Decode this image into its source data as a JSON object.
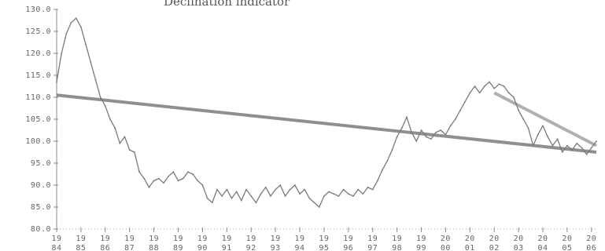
{
  "chart_data": {
    "type": "line",
    "title": "Declination indicator",
    "xlabel": "",
    "ylabel": "",
    "ylim": [
      80,
      130
    ],
    "yticks": [
      80,
      85,
      90,
      95,
      100,
      105,
      110,
      115,
      120,
      125,
      130
    ],
    "ytick_labels": [
      "80.0",
      "85.0",
      "90.0",
      "95.0",
      "100.0",
      "105.0",
      "110.0",
      "115.0",
      "120.0",
      "125.0",
      "130.0"
    ],
    "xlim": [
      1984,
      2006.2
    ],
    "xticks": [
      1984,
      1985,
      1986,
      1987,
      1988,
      1989,
      1990,
      1991,
      1992,
      1993,
      1994,
      1995,
      1996,
      1997,
      1998,
      1999,
      2000,
      2001,
      2002,
      2003,
      2004,
      2005,
      2006
    ],
    "xtick_labels": [
      [
        "19",
        "84"
      ],
      [
        "19",
        "85"
      ],
      [
        "19",
        "86"
      ],
      [
        "19",
        "87"
      ],
      [
        "19",
        "88"
      ],
      [
        "19",
        "89"
      ],
      [
        "19",
        "90"
      ],
      [
        "19",
        "91"
      ],
      [
        "19",
        "92"
      ],
      [
        "19",
        "93"
      ],
      [
        "19",
        "94"
      ],
      [
        "19",
        "95"
      ],
      [
        "19",
        "96"
      ],
      [
        "19",
        "97"
      ],
      [
        "19",
        "98"
      ],
      [
        "19",
        "99"
      ],
      [
        "20",
        "00"
      ],
      [
        "20",
        "01"
      ],
      [
        "20",
        "02"
      ],
      [
        "20",
        "03"
      ],
      [
        "20",
        "04"
      ],
      [
        "20",
        "05"
      ],
      [
        "20",
        "06"
      ]
    ],
    "grid": false,
    "legend": "none",
    "series": [
      {
        "x": [
          1984.0,
          1984.2,
          1984.4,
          1984.6,
          1984.8,
          1985.0,
          1985.2,
          1985.4,
          1985.6,
          1985.8,
          1986.0,
          1986.2,
          1986.4,
          1986.6,
          1986.8,
          1987.0,
          1987.2,
          1987.4,
          1987.6,
          1987.8,
          1988.0,
          1988.2,
          1988.4,
          1988.6,
          1988.8,
          1989.0,
          1989.2,
          1989.4,
          1989.6,
          1989.8,
          1990.0,
          1990.2,
          1990.4,
          1990.6,
          1990.8,
          1991.0,
          1991.2,
          1991.4,
          1991.6,
          1991.8,
          1992.0,
          1992.2,
          1992.4,
          1992.6,
          1992.8,
          1993.0,
          1993.2,
          1993.4,
          1993.6,
          1993.8,
          1994.0,
          1994.2,
          1994.4,
          1994.6,
          1994.8,
          1995.0,
          1995.2,
          1995.4,
          1995.6,
          1995.8,
          1996.0,
          1996.2,
          1996.4,
          1996.6,
          1996.8,
          1997.0,
          1997.2,
          1997.4,
          1997.6,
          1997.8,
          1998.0,
          1998.2,
          1998.4,
          1998.6,
          1998.8,
          1999.0,
          1999.2,
          1999.4,
          1999.6,
          1999.8,
          2000.0,
          2000.2,
          2000.4,
          2000.6,
          2000.8,
          2001.0,
          2001.2,
          2001.4,
          2001.6,
          2001.8,
          2002.0,
          2002.2,
          2002.4,
          2002.6,
          2002.8,
          2003.0,
          2003.2,
          2003.4,
          2003.6,
          2003.8,
          2004.0,
          2004.2,
          2004.4,
          2004.6,
          2004.8,
          2005.0,
          2005.2,
          2005.4,
          2005.6,
          2005.8,
          2006.0,
          2006.2
        ],
        "y": [
          113.5,
          120.0,
          124.5,
          127.0,
          128.0,
          126.0,
          122.0,
          118.0,
          114.0,
          110.0,
          108.0,
          105.0,
          103.0,
          99.5,
          101.0,
          98.0,
          97.5,
          93.0,
          91.5,
          89.5,
          91.0,
          91.5,
          90.5,
          92.0,
          93.0,
          91.0,
          91.5,
          93.0,
          92.5,
          91.0,
          90.0,
          87.0,
          86.0,
          89.0,
          87.5,
          89.0,
          87.0,
          88.5,
          86.5,
          89.0,
          87.5,
          86.0,
          88.0,
          89.5,
          87.5,
          89.0,
          90.0,
          87.5,
          89.0,
          90.0,
          88.0,
          89.0,
          87.0,
          86.0,
          85.0,
          87.5,
          88.5,
          88.0,
          87.5,
          89.0,
          88.0,
          87.5,
          89.0,
          88.0,
          89.5,
          89.0,
          91.0,
          93.5,
          95.5,
          98.0,
          101.0,
          103.0,
          105.5,
          102.0,
          100.0,
          102.5,
          101.0,
          100.5,
          102.0,
          102.5,
          101.5,
          103.5,
          105.0,
          107.0,
          109.0,
          111.0,
          112.5,
          111.0,
          112.5,
          113.5,
          112.0,
          113.0,
          112.5,
          111.0,
          110.0,
          107.0,
          105.0,
          103.0,
          99.0,
          101.5,
          103.5,
          101.0,
          99.0,
          100.5,
          97.5,
          99.0,
          98.0,
          99.5,
          98.5,
          97.0,
          98.5,
          100.0
        ]
      }
    ],
    "trend_lines": [
      {
        "x": [
          1984.0,
          2006.2
        ],
        "y": [
          110.5,
          97.5
        ]
      },
      {
        "x": [
          2002.0,
          2006.2
        ],
        "y": [
          111.0,
          99.0
        ]
      }
    ]
  }
}
